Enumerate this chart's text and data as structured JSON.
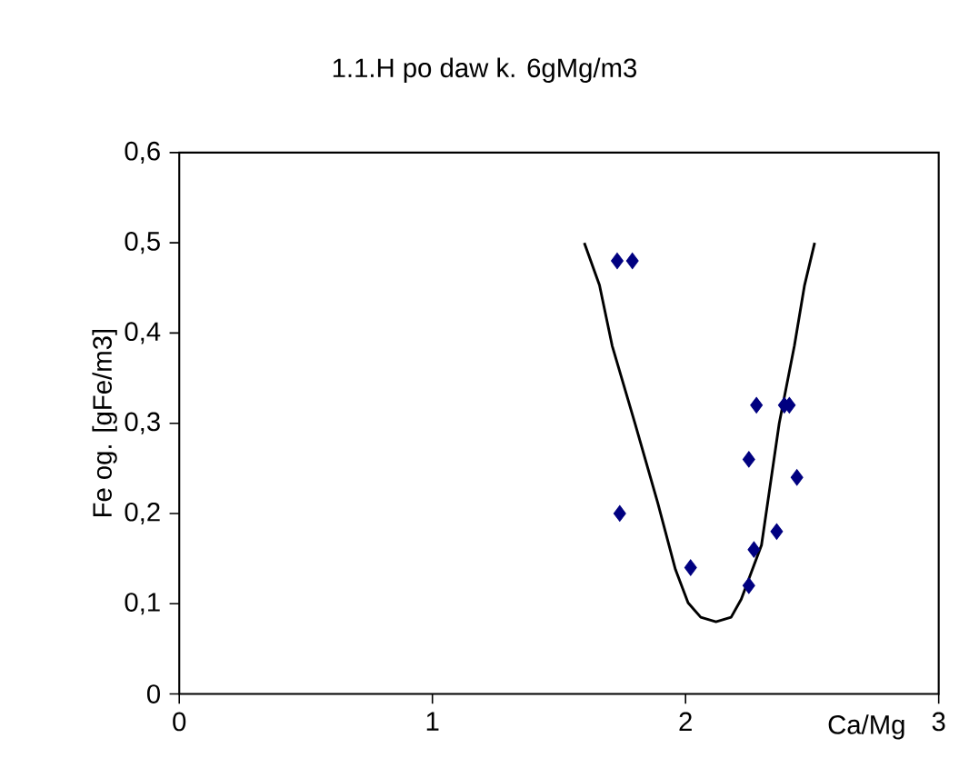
{
  "chart_data": {
    "type": "scatter",
    "title": "1.1.H      po daw k. 6gMg/m3",
    "xlabel": "Ca/Mg",
    "ylabel": "Fe og. [gFe/m3]",
    "xlim": [
      0,
      3
    ],
    "xticks": [
      0,
      1,
      2,
      3
    ],
    "ylim": [
      0,
      0.6
    ],
    "yticks": [
      0,
      {
        "value": 0.1,
        "label": "0,1"
      },
      {
        "value": 0.2,
        "label": "0,2"
      },
      {
        "value": 0.3,
        "label": "0,3"
      },
      {
        "value": 0.4,
        "label": "0,4"
      },
      {
        "value": 0.5,
        "label": "0,5"
      },
      {
        "value": 0.6,
        "label": "0,6"
      }
    ],
    "grid": false,
    "series": [
      {
        "color": "#000080",
        "marker": "diamond",
        "x": [
          1.73,
          1.79,
          1.74,
          2.02,
          2.28,
          2.39,
          2.41,
          2.25,
          2.44,
          2.36,
          2.27,
          2.25
        ],
        "values": [
          0.48,
          0.48,
          0.2,
          0.14,
          0.32,
          0.32,
          0.32,
          0.26,
          0.24,
          0.18,
          0.16,
          0.12
        ]
      },
      {
        "type": "line",
        "color": "#000000",
        "marker": "none",
        "line_style": "solid",
        "x": [
          1.6,
          1.66,
          1.71,
          1.8,
          1.89,
          1.96,
          2.01,
          2.06,
          2.12,
          2.18,
          2.22,
          2.3,
          2.37,
          2.43,
          2.47,
          2.51
        ],
        "values": [
          0.5,
          0.453,
          0.386,
          0.3,
          0.212,
          0.138,
          0.101,
          0.085,
          0.08,
          0.085,
          0.105,
          0.165,
          0.3,
          0.386,
          0.453,
          0.5
        ]
      }
    ]
  }
}
